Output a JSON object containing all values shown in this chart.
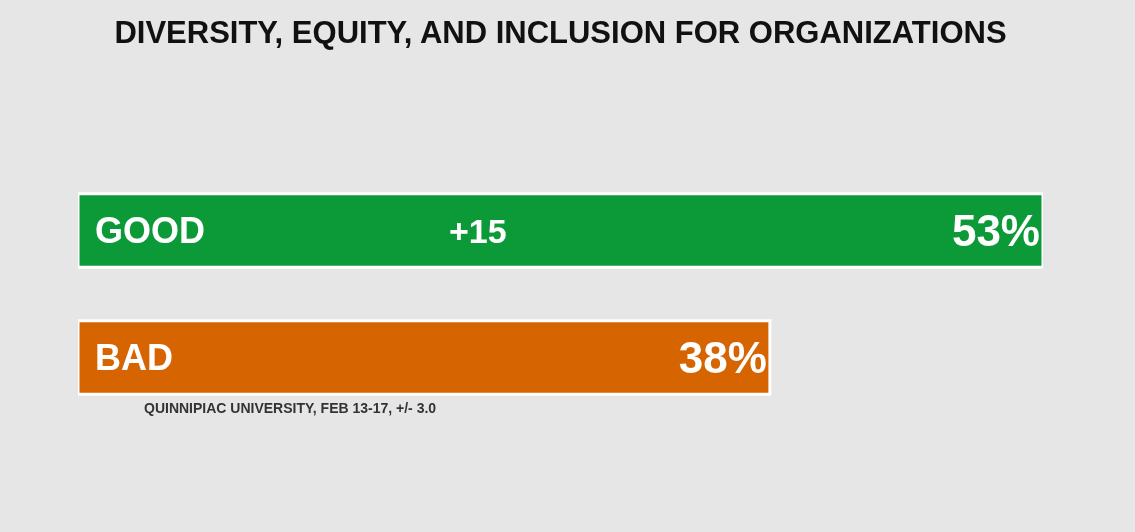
{
  "chart_data": {
    "type": "bar",
    "orientation": "horizontal",
    "title": "DIVERSITY, EQUITY, AND INCLUSION FOR ORGANIZATIONS",
    "categories": [
      "GOOD",
      "BAD"
    ],
    "values": [
      53,
      38
    ],
    "colors": [
      "#0c9a38",
      "#d66400"
    ],
    "value_labels": [
      "53%",
      "38%"
    ],
    "xlim": [
      0,
      53
    ],
    "tick_labels": "y",
    "annotations": [
      "+15",
      "QUINNIPIAC UNIVERSITY, FEB 13-17, +/- 3.0"
    ]
  }
}
